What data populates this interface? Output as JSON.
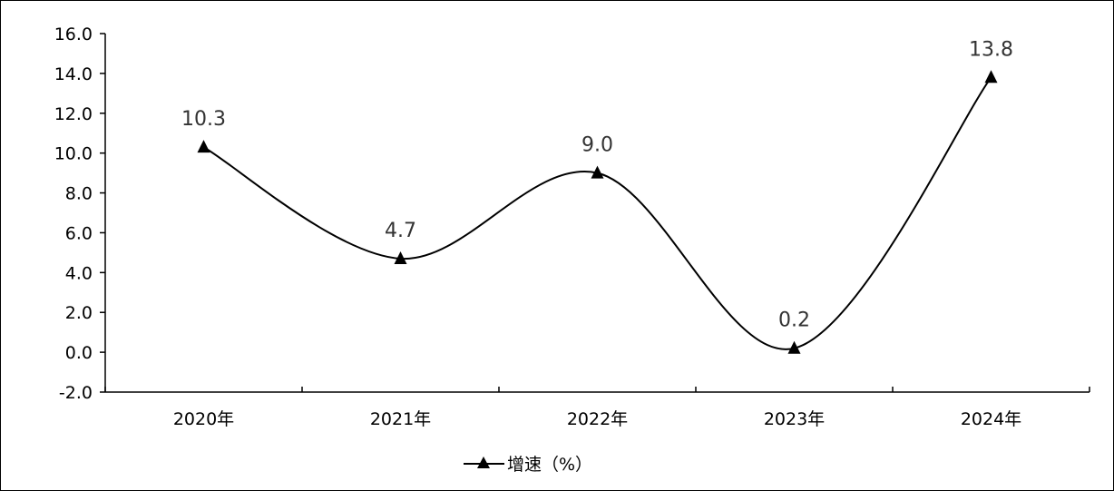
{
  "chart_data": {
    "type": "line",
    "categories": [
      "2020年",
      "2021年",
      "2022年",
      "2023年",
      "2024年"
    ],
    "series": [
      {
        "name": "增速（%）",
        "values": [
          10.3,
          4.7,
          9.0,
          0.2,
          13.8
        ],
        "marker": "triangle",
        "color": "#000000"
      }
    ],
    "data_labels": [
      "10.3",
      "4.7",
      "9.0",
      "0.2",
      "13.8"
    ],
    "ylim": [
      -2.0,
      16.0
    ],
    "yticks": [
      "16.0",
      "14.0",
      "12.0",
      "10.0",
      "8.0",
      "6.0",
      "4.0",
      "2.0",
      "0.0",
      "-2.0"
    ],
    "title": "",
    "xlabel": "",
    "ylabel": "",
    "grid": false,
    "smooth": true,
    "legend_position": "bottom"
  }
}
